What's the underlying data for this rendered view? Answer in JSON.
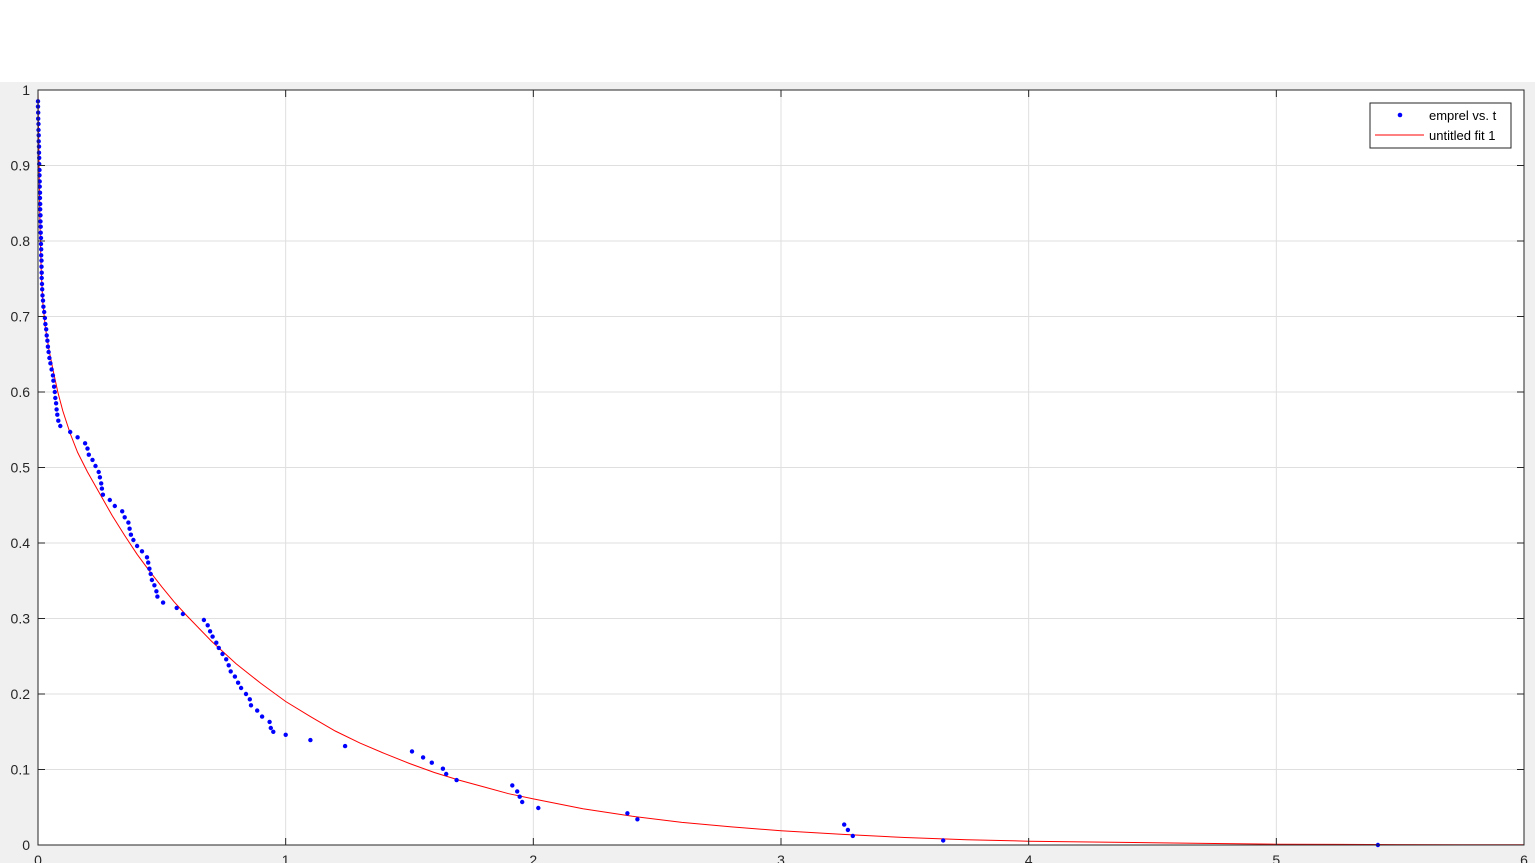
{
  "chart_data": {
    "type": "scatter",
    "title": "",
    "xlabel": "",
    "ylabel": "",
    "xlim": [
      0,
      6
    ],
    "ylim": [
      0,
      1
    ],
    "grid": true,
    "legend_placement": "top-right",
    "x_ticks": [
      "0",
      "1",
      "2",
      "3",
      "4",
      "5",
      "6"
    ],
    "y_ticks": [
      "0",
      "0.1",
      "0.2",
      "0.3",
      "0.4",
      "0.5",
      "0.6",
      "0.7",
      "0.8",
      "0.9",
      "1"
    ],
    "series": [
      {
        "name": "emprel vs. t",
        "kind": "points",
        "color": "#0000ff",
        "points": [
          [
            0.0,
            0.985
          ],
          [
            0.0,
            0.978
          ],
          [
            0.001,
            0.97
          ],
          [
            0.001,
            0.962
          ],
          [
            0.002,
            0.955
          ],
          [
            0.002,
            0.947
          ],
          [
            0.003,
            0.94
          ],
          [
            0.003,
            0.932
          ],
          [
            0.004,
            0.925
          ],
          [
            0.004,
            0.917
          ],
          [
            0.005,
            0.91
          ],
          [
            0.005,
            0.902
          ],
          [
            0.006,
            0.894
          ],
          [
            0.006,
            0.887
          ],
          [
            0.007,
            0.879
          ],
          [
            0.007,
            0.872
          ],
          [
            0.008,
            0.864
          ],
          [
            0.008,
            0.857
          ],
          [
            0.009,
            0.849
          ],
          [
            0.009,
            0.842
          ],
          [
            0.01,
            0.834
          ],
          [
            0.01,
            0.826
          ],
          [
            0.011,
            0.819
          ],
          [
            0.011,
            0.811
          ],
          [
            0.012,
            0.804
          ],
          [
            0.012,
            0.796
          ],
          [
            0.013,
            0.789
          ],
          [
            0.013,
            0.781
          ],
          [
            0.014,
            0.774
          ],
          [
            0.014,
            0.766
          ],
          [
            0.015,
            0.758
          ],
          [
            0.015,
            0.751
          ],
          [
            0.016,
            0.743
          ],
          [
            0.017,
            0.736
          ],
          [
            0.018,
            0.728
          ],
          [
            0.02,
            0.721
          ],
          [
            0.022,
            0.713
          ],
          [
            0.025,
            0.706
          ],
          [
            0.028,
            0.698
          ],
          [
            0.03,
            0.69
          ],
          [
            0.033,
            0.683
          ],
          [
            0.035,
            0.675
          ],
          [
            0.038,
            0.668
          ],
          [
            0.04,
            0.66
          ],
          [
            0.043,
            0.653
          ],
          [
            0.046,
            0.645
          ],
          [
            0.05,
            0.638
          ],
          [
            0.055,
            0.63
          ],
          [
            0.06,
            0.622
          ],
          [
            0.062,
            0.615
          ],
          [
            0.065,
            0.607
          ],
          [
            0.068,
            0.6
          ],
          [
            0.07,
            0.592
          ],
          [
            0.073,
            0.585
          ],
          [
            0.075,
            0.577
          ],
          [
            0.078,
            0.57
          ],
          [
            0.082,
            0.562
          ],
          [
            0.09,
            0.555
          ],
          [
            0.13,
            0.547
          ],
          [
            0.16,
            0.54
          ],
          [
            0.19,
            0.532
          ],
          [
            0.2,
            0.525
          ],
          [
            0.205,
            0.517
          ],
          [
            0.22,
            0.51
          ],
          [
            0.232,
            0.502
          ],
          [
            0.245,
            0.494
          ],
          [
            0.25,
            0.487
          ],
          [
            0.255,
            0.479
          ],
          [
            0.258,
            0.472
          ],
          [
            0.262,
            0.464
          ],
          [
            0.29,
            0.457
          ],
          [
            0.31,
            0.449
          ],
          [
            0.34,
            0.442
          ],
          [
            0.35,
            0.434
          ],
          [
            0.365,
            0.427
          ],
          [
            0.37,
            0.419
          ],
          [
            0.375,
            0.411
          ],
          [
            0.385,
            0.404
          ],
          [
            0.4,
            0.396
          ],
          [
            0.42,
            0.389
          ],
          [
            0.44,
            0.381
          ],
          [
            0.445,
            0.374
          ],
          [
            0.45,
            0.366
          ],
          [
            0.455,
            0.359
          ],
          [
            0.46,
            0.351
          ],
          [
            0.47,
            0.344
          ],
          [
            0.478,
            0.336
          ],
          [
            0.482,
            0.329
          ],
          [
            0.505,
            0.321
          ],
          [
            0.56,
            0.314
          ],
          [
            0.585,
            0.306
          ],
          [
            0.67,
            0.298
          ],
          [
            0.685,
            0.291
          ],
          [
            0.695,
            0.283
          ],
          [
            0.705,
            0.276
          ],
          [
            0.72,
            0.268
          ],
          [
            0.73,
            0.261
          ],
          [
            0.745,
            0.253
          ],
          [
            0.76,
            0.246
          ],
          [
            0.77,
            0.238
          ],
          [
            0.778,
            0.23
          ],
          [
            0.795,
            0.223
          ],
          [
            0.808,
            0.215
          ],
          [
            0.82,
            0.208
          ],
          [
            0.84,
            0.2
          ],
          [
            0.855,
            0.193
          ],
          [
            0.86,
            0.185
          ],
          [
            0.885,
            0.178
          ],
          [
            0.905,
            0.17
          ],
          [
            0.935,
            0.163
          ],
          [
            0.94,
            0.155
          ],
          [
            0.95,
            0.15
          ],
          [
            1.0,
            0.146
          ],
          [
            1.1,
            0.139
          ],
          [
            1.24,
            0.131
          ],
          [
            1.51,
            0.124
          ],
          [
            1.555,
            0.116
          ],
          [
            1.59,
            0.109
          ],
          [
            1.635,
            0.101
          ],
          [
            1.648,
            0.094
          ],
          [
            1.69,
            0.086
          ],
          [
            1.915,
            0.079
          ],
          [
            1.935,
            0.071
          ],
          [
            1.945,
            0.064
          ],
          [
            1.955,
            0.057
          ],
          [
            2.02,
            0.049
          ],
          [
            2.38,
            0.042
          ],
          [
            2.42,
            0.034
          ],
          [
            3.255,
            0.027
          ],
          [
            3.27,
            0.02
          ],
          [
            3.29,
            0.012
          ],
          [
            3.655,
            0.006
          ],
          [
            5.41,
            0.0
          ]
        ]
      },
      {
        "name": "untitled fit 1",
        "kind": "curve",
        "color": "#ff0000",
        "points": [
          [
            0.0,
            1.0
          ],
          [
            0.004,
            0.9
          ],
          [
            0.008,
            0.82
          ],
          [
            0.013,
            0.76
          ],
          [
            0.02,
            0.715
          ],
          [
            0.03,
            0.685
          ],
          [
            0.045,
            0.655
          ],
          [
            0.06,
            0.63
          ],
          [
            0.08,
            0.6
          ],
          [
            0.1,
            0.575
          ],
          [
            0.13,
            0.545
          ],
          [
            0.16,
            0.52
          ],
          [
            0.2,
            0.494
          ],
          [
            0.25,
            0.465
          ],
          [
            0.3,
            0.436
          ],
          [
            0.35,
            0.41
          ],
          [
            0.4,
            0.385
          ],
          [
            0.45,
            0.363
          ],
          [
            0.5,
            0.342
          ],
          [
            0.55,
            0.322
          ],
          [
            0.6,
            0.304
          ],
          [
            0.7,
            0.27
          ],
          [
            0.8,
            0.24
          ],
          [
            0.9,
            0.214
          ],
          [
            1.0,
            0.19
          ],
          [
            1.1,
            0.17
          ],
          [
            1.2,
            0.151
          ],
          [
            1.3,
            0.135
          ],
          [
            1.4,
            0.121
          ],
          [
            1.5,
            0.108
          ],
          [
            1.6,
            0.096
          ],
          [
            1.7,
            0.086
          ],
          [
            1.8,
            0.077
          ],
          [
            1.9,
            0.068
          ],
          [
            2.0,
            0.061
          ],
          [
            2.2,
            0.048
          ],
          [
            2.4,
            0.038
          ],
          [
            2.6,
            0.03
          ],
          [
            2.8,
            0.024
          ],
          [
            3.0,
            0.019
          ],
          [
            3.25,
            0.014
          ],
          [
            3.5,
            0.01
          ],
          [
            3.75,
            0.007
          ],
          [
            4.0,
            0.005
          ],
          [
            4.25,
            0.004
          ],
          [
            4.5,
            0.003
          ],
          [
            4.75,
            0.002
          ],
          [
            5.0,
            0.001
          ],
          [
            5.25,
            0.0008
          ],
          [
            5.5,
            0.0005
          ],
          [
            5.75,
            0.0003
          ],
          [
            6.0,
            0.0002
          ]
        ]
      }
    ]
  }
}
